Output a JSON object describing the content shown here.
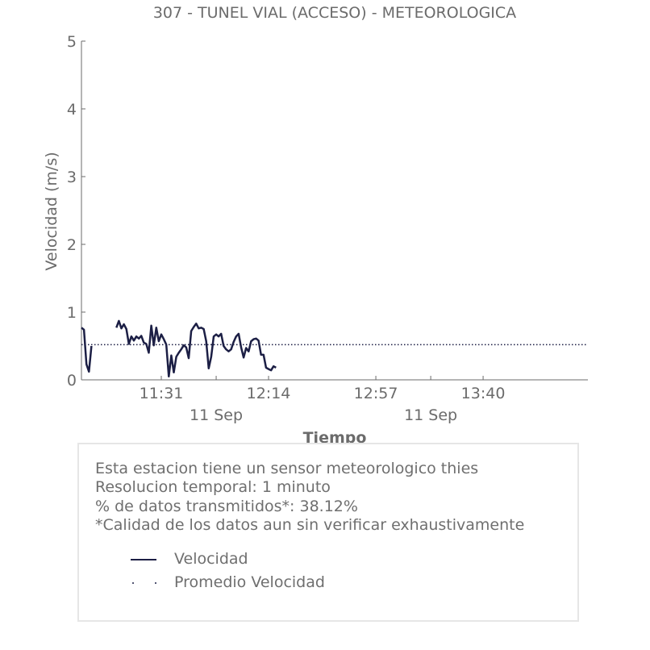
{
  "chart_data": {
    "type": "line",
    "title": "307 - TUNEL VIAL (ACCESO) - METEOROLOGICA",
    "xlabel": "Tiempo",
    "ylabel": "Velocidad (m/s)",
    "ylim": [
      0,
      5
    ],
    "xlim": [
      "10:59",
      "14:22"
    ],
    "y_ticks": [
      "0",
      "1",
      "2",
      "3",
      "4",
      "5"
    ],
    "x_ticks": [
      {
        "time": "11:31",
        "label": "11:31",
        "sublabel": ""
      },
      {
        "time": "11:53",
        "label": "",
        "sublabel": "11 Sep"
      },
      {
        "time": "12:14",
        "label": "12:14",
        "sublabel": ""
      },
      {
        "time": "12:57",
        "label": "12:57",
        "sublabel": ""
      },
      {
        "time": "13:19",
        "label": "",
        "sublabel": "11 Sep"
      },
      {
        "time": "13:40",
        "label": "13:40",
        "sublabel": ""
      }
    ],
    "grid": false,
    "series": [
      {
        "name": "Velocidad",
        "color": "#1c1f45",
        "style": "solid",
        "segments": [
          [
            {
              "x": "10:59",
              "y": 0.77
            },
            {
              "x": "11:00",
              "y": 0.74
            },
            {
              "x": "11:01",
              "y": 0.23
            },
            {
              "x": "11:02",
              "y": 0.12
            },
            {
              "x": "11:03",
              "y": 0.5
            }
          ],
          [
            {
              "x": "11:13",
              "y": 0.77
            },
            {
              "x": "11:14",
              "y": 0.87
            },
            {
              "x": "11:15",
              "y": 0.76
            },
            {
              "x": "11:16",
              "y": 0.82
            },
            {
              "x": "11:17",
              "y": 0.75
            },
            {
              "x": "11:18",
              "y": 0.53
            },
            {
              "x": "11:19",
              "y": 0.64
            },
            {
              "x": "11:20",
              "y": 0.58
            },
            {
              "x": "11:21",
              "y": 0.64
            },
            {
              "x": "11:22",
              "y": 0.61
            },
            {
              "x": "11:23",
              "y": 0.65
            },
            {
              "x": "11:24",
              "y": 0.55
            },
            {
              "x": "11:25",
              "y": 0.53
            },
            {
              "x": "11:26",
              "y": 0.4
            },
            {
              "x": "11:27",
              "y": 0.8
            },
            {
              "x": "11:28",
              "y": 0.51
            },
            {
              "x": "11:29",
              "y": 0.77
            },
            {
              "x": "11:30",
              "y": 0.57
            },
            {
              "x": "11:31",
              "y": 0.67
            },
            {
              "x": "11:32",
              "y": 0.6
            },
            {
              "x": "11:33",
              "y": 0.52
            },
            {
              "x": "11:34",
              "y": 0.05
            },
            {
              "x": "11:35",
              "y": 0.36
            },
            {
              "x": "11:36",
              "y": 0.11
            },
            {
              "x": "11:37",
              "y": 0.34
            },
            {
              "x": "11:38",
              "y": 0.4
            },
            {
              "x": "11:39",
              "y": 0.45
            },
            {
              "x": "11:40",
              "y": 0.51
            },
            {
              "x": "11:41",
              "y": 0.48
            },
            {
              "x": "11:42",
              "y": 0.32
            },
            {
              "x": "11:43",
              "y": 0.72
            },
            {
              "x": "11:44",
              "y": 0.78
            },
            {
              "x": "11:45",
              "y": 0.83
            },
            {
              "x": "11:46",
              "y": 0.76
            },
            {
              "x": "11:47",
              "y": 0.77
            },
            {
              "x": "11:48",
              "y": 0.75
            },
            {
              "x": "11:49",
              "y": 0.57
            },
            {
              "x": "11:50",
              "y": 0.17
            },
            {
              "x": "11:51",
              "y": 0.34
            },
            {
              "x": "11:52",
              "y": 0.64
            },
            {
              "x": "11:53",
              "y": 0.67
            },
            {
              "x": "11:54",
              "y": 0.64
            },
            {
              "x": "11:55",
              "y": 0.68
            },
            {
              "x": "11:56",
              "y": 0.5
            },
            {
              "x": "11:57",
              "y": 0.45
            },
            {
              "x": "11:58",
              "y": 0.42
            },
            {
              "x": "11:59",
              "y": 0.45
            },
            {
              "x": "12:00",
              "y": 0.56
            },
            {
              "x": "12:01",
              "y": 0.64
            },
            {
              "x": "12:02",
              "y": 0.68
            },
            {
              "x": "12:03",
              "y": 0.48
            },
            {
              "x": "12:04",
              "y": 0.33
            },
            {
              "x": "12:05",
              "y": 0.47
            },
            {
              "x": "12:06",
              "y": 0.42
            },
            {
              "x": "12:07",
              "y": 0.57
            },
            {
              "x": "12:08",
              "y": 0.6
            },
            {
              "x": "12:09",
              "y": 0.61
            },
            {
              "x": "12:10",
              "y": 0.58
            },
            {
              "x": "12:11",
              "y": 0.37
            },
            {
              "x": "12:12",
              "y": 0.37
            },
            {
              "x": "12:13",
              "y": 0.18
            },
            {
              "x": "12:14",
              "y": 0.16
            },
            {
              "x": "12:15",
              "y": 0.14
            },
            {
              "x": "12:16",
              "y": 0.2
            },
            {
              "x": "12:17",
              "y": 0.18
            }
          ]
        ]
      },
      {
        "name": "Promedio Velocidad",
        "color": "#1c1f45",
        "style": "dotted",
        "y": 0.52
      }
    ]
  },
  "info": {
    "line1": "Esta estacion tiene un sensor meteorologico thies",
    "line2": "Resolucion temporal: 1 minuto",
    "line3": "% de datos transmitidos*: 38.12%",
    "line4": "*Calidad de los datos aun sin verificar exhaustivamente"
  },
  "legend": {
    "position": "inside info box",
    "items": [
      {
        "label": "Velocidad",
        "style": "solid"
      },
      {
        "label": "Promedio Velocidad",
        "style": "dotted"
      }
    ]
  }
}
